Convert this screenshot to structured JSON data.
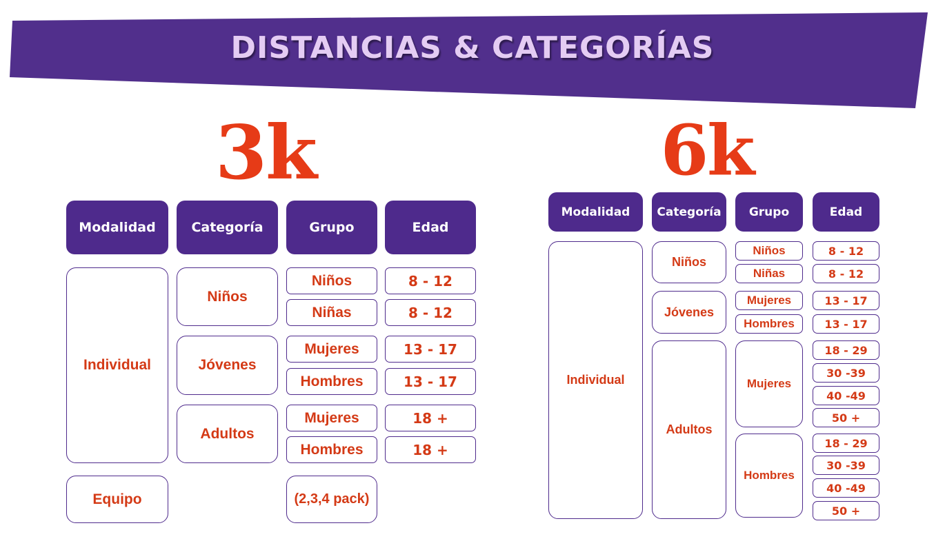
{
  "banner": {
    "title": "DISTANCIAS & CATEGORÍAS",
    "color": "#512f8c",
    "text_color": "#e4ccf3"
  },
  "colors": {
    "accent": "#e63b17",
    "purple": "#4e2a8c"
  },
  "d3k": {
    "title": "3k",
    "headers": {
      "modalidad": "Modalidad",
      "categoria": "Categoría",
      "grupo": "Grupo",
      "edad": "Edad"
    },
    "modalidades": {
      "individual": "Individual",
      "equipo": "Equipo"
    },
    "categorias": {
      "ninos": "Niños",
      "jovenes": "Jóvenes",
      "adultos": "Adultos"
    },
    "grupos": {
      "ninos": "Niños",
      "ninas": "Niñas",
      "mujeres_j": "Mujeres",
      "hombres_j": "Hombres",
      "mujeres_a": "Mujeres",
      "hombres_a": "Hombres",
      "equipo": "(2,3,4 pack)"
    },
    "edades": {
      "ninos": "8 - 12",
      "ninas": "8 - 12",
      "mujeres_j": "13 - 17",
      "hombres_j": "13 - 17",
      "mujeres_a": "18 +",
      "hombres_a": "18 +"
    }
  },
  "d6k": {
    "title": "6k",
    "headers": {
      "modalidad": "Modalidad",
      "categoria": "Categoría",
      "grupo": "Grupo",
      "edad": "Edad"
    },
    "modalidades": {
      "individual": "Individual"
    },
    "categorias": {
      "ninos": "Niños",
      "jovenes": "Jóvenes",
      "adultos": "Adultos"
    },
    "grupos": {
      "ninos": "Niños",
      "ninas": "Niñas",
      "mujeres_j": "Mujeres",
      "hombres_j": "Hombres",
      "mujeres_a": "Mujeres",
      "hombres_a": "Hombres"
    },
    "edades": {
      "ninos": "8 - 12",
      "ninas": "8 - 12",
      "mujeres_j": "13 - 17",
      "hombres_j": "13 - 17",
      "mujeres_a": [
        "18 - 29",
        "30 -39",
        "40 -49",
        "50 +"
      ],
      "hombres_a": [
        "18 - 29",
        "30 -39",
        "40 -49",
        "50 +"
      ]
    }
  }
}
